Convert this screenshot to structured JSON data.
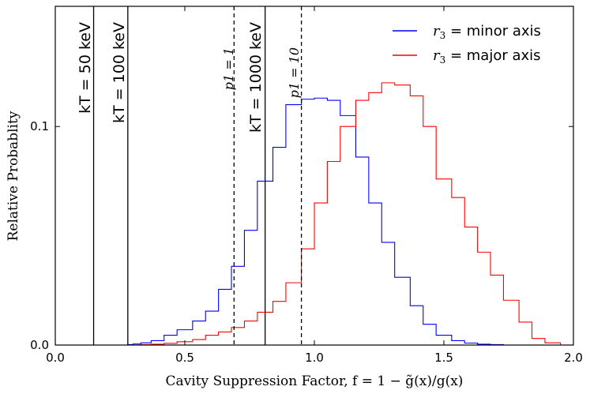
{
  "chart_data": {
    "type": "histogram-step",
    "xlabel": "Cavity Suppression Factor, f = 1 − g̃(x)/g(x)",
    "ylabel": "Relative Probablity",
    "xlim": [
      0.0,
      2.0
    ],
    "ylim": [
      0.0,
      0.155
    ],
    "x_ticks": [
      {
        "value": 0.0,
        "label": "0.0"
      },
      {
        "value": 0.5,
        "label": "0.5"
      },
      {
        "value": 1.0,
        "label": "1.0"
      },
      {
        "value": 1.5,
        "label": "1.5"
      },
      {
        "value": 2.0,
        "label": "2.0"
      }
    ],
    "y_ticks": [
      {
        "value": 0.0,
        "label": "0.0"
      },
      {
        "value": 0.1,
        "label": "0.1"
      }
    ],
    "bin_edges": [
      0.28,
      0.3,
      0.33,
      0.37,
      0.42,
      0.47,
      0.53,
      0.58,
      0.63,
      0.68,
      0.73,
      0.78,
      0.84,
      0.89,
      0.95,
      1.0,
      1.05,
      1.1,
      1.16,
      1.21,
      1.26,
      1.31,
      1.37,
      1.42,
      1.47,
      1.53,
      1.58,
      1.63,
      1.68,
      1.73,
      1.79,
      1.84,
      1.89,
      1.95,
      2.0
    ],
    "series": [
      {
        "name": "r3 = minor axis",
        "color": "#0000ff",
        "values": [
          0.0002,
          0.0005,
          0.001,
          0.002,
          0.0045,
          0.007,
          0.011,
          0.0155,
          0.0255,
          0.036,
          0.0525,
          0.075,
          0.0905,
          0.11,
          0.1125,
          0.113,
          0.112,
          0.105,
          0.086,
          0.065,
          0.047,
          0.031,
          0.018,
          0.0095,
          0.0045,
          0.002,
          0.0009,
          0.0004,
          0.0002,
          0.0,
          0.0,
          0.0,
          0.0,
          0.0
        ]
      },
      {
        "name": "r3 = major axis",
        "color": "#ff0000",
        "values": [
          0.0,
          0.0,
          0.0002,
          0.0004,
          0.0008,
          0.0015,
          0.0025,
          0.0045,
          0.006,
          0.008,
          0.011,
          0.015,
          0.02,
          0.0285,
          0.044,
          0.065,
          0.084,
          0.1,
          0.112,
          0.1155,
          0.12,
          0.119,
          0.114,
          0.1,
          0.076,
          0.0675,
          0.054,
          0.0425,
          0.032,
          0.0205,
          0.0105,
          0.003,
          0.001,
          0.0
        ]
      }
    ],
    "vertical_lines": [
      {
        "x": 0.148,
        "style": "solid",
        "label": "kT = 50 keV"
      },
      {
        "x": 0.28,
        "style": "solid",
        "label": "kT = 100 keV"
      },
      {
        "x": 0.69,
        "style": "dashed",
        "label": "p1 = 1"
      },
      {
        "x": 0.81,
        "style": "solid",
        "label": "kT = 1000 keV"
      },
      {
        "x": 0.95,
        "style": "dashed",
        "label": "p1 = 10"
      }
    ],
    "legend": {
      "position": "top-right",
      "entries": [
        {
          "prefix": "r3",
          "text": "= minor axis",
          "color": "#0000ff"
        },
        {
          "prefix": "r3",
          "text": "= major axis",
          "color": "#ff0000"
        }
      ]
    }
  }
}
